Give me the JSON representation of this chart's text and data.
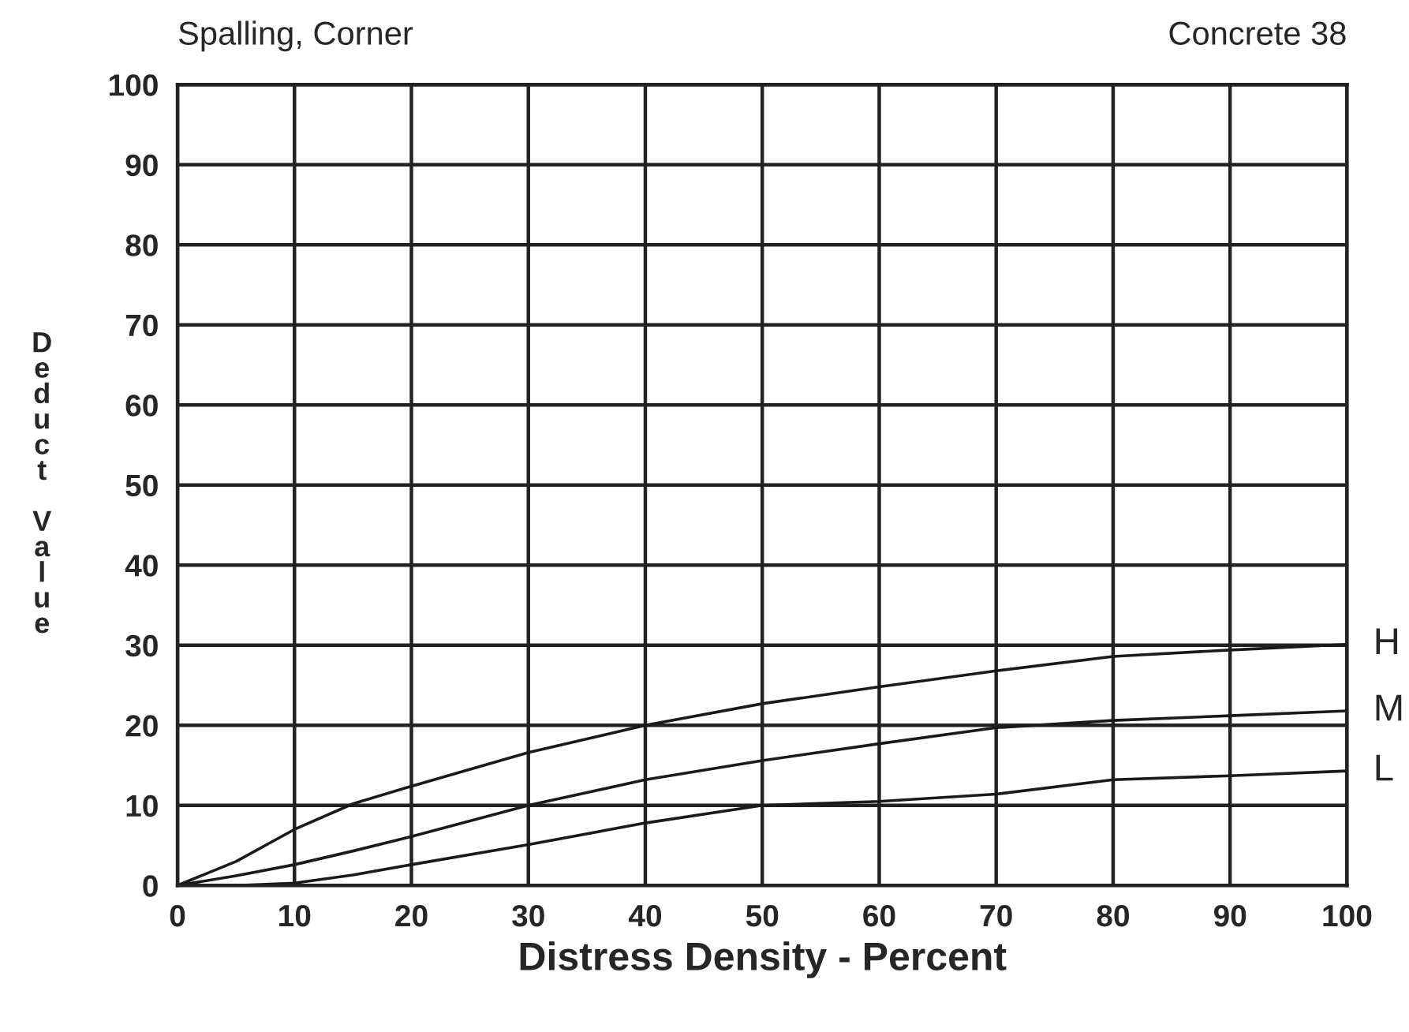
{
  "chart_data": {
    "type": "line",
    "title": "Spalling, Corner",
    "subtitle": "Concrete 38",
    "xlabel": "Distress Density - Percent",
    "ylabel": "Deduct Value",
    "x": [
      0,
      5,
      10,
      15,
      20,
      30,
      40,
      50,
      60,
      70,
      80,
      90,
      100
    ],
    "series": [
      {
        "name": "H",
        "color": "#1a1a1a",
        "values": [
          0,
          3,
          7,
          10.2,
          12.4,
          16.6,
          20,
          22.7,
          24.8,
          26.8,
          28.6,
          29.4,
          30.1
        ]
      },
      {
        "name": "M",
        "color": "#1a1a1a",
        "values": [
          0,
          1.2,
          2.6,
          4.3,
          6.1,
          10,
          13.2,
          15.6,
          17.7,
          19.7,
          20.6,
          21.2,
          21.8
        ]
      },
      {
        "name": "L",
        "color": "#1a1a1a",
        "values": [
          0,
          0,
          0.3,
          1.3,
          2.6,
          5.1,
          7.8,
          10,
          10.5,
          11.4,
          13.2,
          13.7,
          14.3
        ]
      }
    ],
    "xlim": [
      0,
      100
    ],
    "ylim": [
      0,
      100
    ],
    "xticks": [
      0,
      10,
      20,
      30,
      40,
      50,
      60,
      70,
      80,
      90,
      100
    ],
    "yticks": [
      0,
      10,
      20,
      30,
      40,
      50,
      60,
      70,
      80,
      90,
      100
    ],
    "grid": true,
    "legend": false,
    "marker": "none",
    "line_style": "solid"
  }
}
